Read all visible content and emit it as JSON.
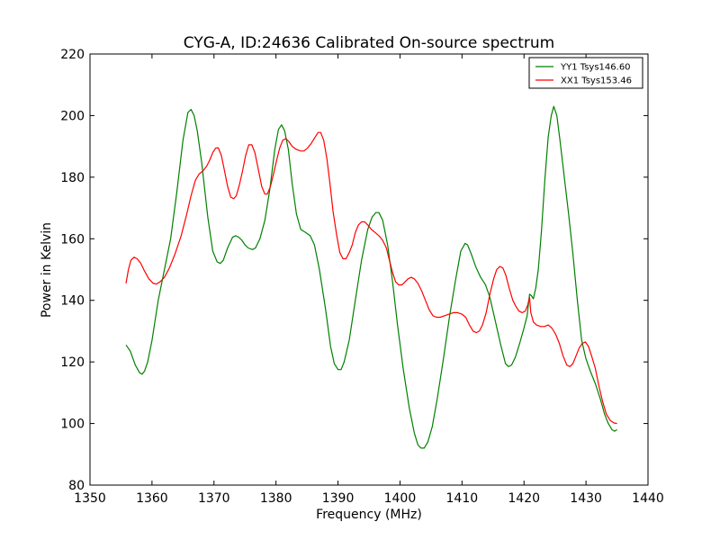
{
  "chart_data": {
    "type": "line",
    "title": "CYG-A, ID:24636 Calibrated On-source spectrum",
    "xlabel": "Frequency (MHz)",
    "ylabel": "Power in Kelvin",
    "xlim": [
      1350,
      1440
    ],
    "ylim": [
      80,
      220
    ],
    "xticks": [
      "1350",
      "1360",
      "1370",
      "1380",
      "1390",
      "1400",
      "1410",
      "1420",
      "1430",
      "1440"
    ],
    "yticks": [
      "80",
      "100",
      "120",
      "140",
      "160",
      "180",
      "200",
      "220"
    ],
    "grid": false,
    "legend_position": "top-right",
    "series": [
      {
        "name": "YY1 Tsys146.60",
        "color": "#008000",
        "points": [
          [
            1355.8,
            125.5
          ],
          [
            1356.5,
            123.5
          ],
          [
            1357.3,
            119
          ],
          [
            1358,
            116.5
          ],
          [
            1358.4,
            116
          ],
          [
            1358.8,
            117
          ],
          [
            1359.3,
            120
          ],
          [
            1360,
            127
          ],
          [
            1361,
            140
          ],
          [
            1362,
            150
          ],
          [
            1363,
            160
          ],
          [
            1364,
            175
          ],
          [
            1365,
            192
          ],
          [
            1365.8,
            201
          ],
          [
            1366.3,
            202
          ],
          [
            1366.8,
            200
          ],
          [
            1367.3,
            195
          ],
          [
            1368,
            185
          ],
          [
            1369,
            167
          ],
          [
            1369.8,
            156
          ],
          [
            1370.5,
            152.5
          ],
          [
            1371,
            152
          ],
          [
            1371.5,
            153
          ],
          [
            1372.2,
            157
          ],
          [
            1373,
            160.5
          ],
          [
            1373.5,
            161
          ],
          [
            1374,
            160.5
          ],
          [
            1374.5,
            159.5
          ],
          [
            1375,
            158
          ],
          [
            1375.5,
            157
          ],
          [
            1376.2,
            156.5
          ],
          [
            1376.7,
            157
          ],
          [
            1377.4,
            160
          ],
          [
            1378.2,
            166
          ],
          [
            1379,
            176
          ],
          [
            1379.8,
            189
          ],
          [
            1380.4,
            195.5
          ],
          [
            1380.9,
            197
          ],
          [
            1381.4,
            195
          ],
          [
            1382,
            189
          ],
          [
            1382.6,
            178
          ],
          [
            1383.3,
            168
          ],
          [
            1384,
            163
          ],
          [
            1384.8,
            162
          ],
          [
            1385.5,
            161
          ],
          [
            1386.2,
            158
          ],
          [
            1387,
            150
          ],
          [
            1388,
            137
          ],
          [
            1388.8,
            125
          ],
          [
            1389.4,
            119.5
          ],
          [
            1390,
            117.5
          ],
          [
            1390.5,
            117.5
          ],
          [
            1391,
            120
          ],
          [
            1391.8,
            127
          ],
          [
            1392.8,
            140
          ],
          [
            1393.8,
            153
          ],
          [
            1394.8,
            163
          ],
          [
            1395.5,
            167
          ],
          [
            1396.1,
            168.5
          ],
          [
            1396.6,
            168.5
          ],
          [
            1397.2,
            166
          ],
          [
            1398,
            158
          ],
          [
            1398.8,
            146
          ],
          [
            1399.6,
            132
          ],
          [
            1400.5,
            118
          ],
          [
            1401.5,
            105
          ],
          [
            1402.3,
            97
          ],
          [
            1402.9,
            93
          ],
          [
            1403.4,
            92
          ],
          [
            1403.9,
            92
          ],
          [
            1404.5,
            94
          ],
          [
            1405.2,
            99
          ],
          [
            1406,
            108
          ],
          [
            1407,
            121
          ],
          [
            1408,
            135
          ],
          [
            1409,
            147
          ],
          [
            1409.8,
            156
          ],
          [
            1410.5,
            158.5
          ],
          [
            1410.9,
            158
          ],
          [
            1411.5,
            155
          ],
          [
            1412.2,
            151
          ],
          [
            1413,
            147.5
          ],
          [
            1413.8,
            145
          ],
          [
            1414.5,
            141
          ],
          [
            1415.3,
            134
          ],
          [
            1416.2,
            126
          ],
          [
            1417,
            119.5
          ],
          [
            1417.5,
            118.5
          ],
          [
            1418,
            119
          ],
          [
            1418.6,
            121.5
          ],
          [
            1419.3,
            126
          ],
          [
            1420,
            131
          ],
          [
            1420.5,
            135
          ],
          [
            1420.9,
            142
          ],
          [
            1421.2,
            141.5
          ],
          [
            1421.5,
            140.5
          ],
          [
            1421.9,
            144
          ],
          [
            1422.3,
            150
          ],
          [
            1422.8,
            162
          ],
          [
            1423.4,
            180
          ],
          [
            1423.9,
            193
          ],
          [
            1424.4,
            200
          ],
          [
            1424.8,
            203
          ],
          [
            1425.3,
            200
          ],
          [
            1425.8,
            192
          ],
          [
            1426.5,
            180
          ],
          [
            1427.2,
            168
          ],
          [
            1427.9,
            155
          ],
          [
            1428.6,
            140
          ],
          [
            1429.3,
            127
          ],
          [
            1430,
            121
          ],
          [
            1430.7,
            117
          ],
          [
            1431.5,
            113
          ],
          [
            1432.3,
            108
          ],
          [
            1433,
            103
          ],
          [
            1433.6,
            100
          ],
          [
            1434.2,
            98
          ],
          [
            1434.6,
            97.5
          ],
          [
            1435,
            98
          ]
        ]
      },
      {
        "name": "XX1 Tsys153.46",
        "color": "#ff0000",
        "points": [
          [
            1355.8,
            145.5
          ],
          [
            1356.2,
            150
          ],
          [
            1356.6,
            153
          ],
          [
            1357.1,
            154
          ],
          [
            1357.6,
            153.5
          ],
          [
            1358.2,
            152
          ],
          [
            1358.8,
            149.5
          ],
          [
            1359.5,
            147
          ],
          [
            1360.2,
            145.5
          ],
          [
            1360.7,
            145.3
          ],
          [
            1361.3,
            146
          ],
          [
            1362,
            147.5
          ],
          [
            1362.8,
            150.5
          ],
          [
            1363.7,
            155
          ],
          [
            1364.7,
            161
          ],
          [
            1365.6,
            168
          ],
          [
            1366.3,
            174
          ],
          [
            1367,
            179
          ],
          [
            1367.6,
            181
          ],
          [
            1368.2,
            182
          ],
          [
            1368.8,
            183.5
          ],
          [
            1369.3,
            185.5
          ],
          [
            1369.8,
            188
          ],
          [
            1370.3,
            189.5
          ],
          [
            1370.7,
            189.5
          ],
          [
            1371.2,
            187
          ],
          [
            1371.7,
            182
          ],
          [
            1372.2,
            177
          ],
          [
            1372.7,
            173.5
          ],
          [
            1373.2,
            173
          ],
          [
            1373.6,
            174
          ],
          [
            1374.1,
            177.5
          ],
          [
            1374.6,
            182
          ],
          [
            1375.1,
            187
          ],
          [
            1375.6,
            190.5
          ],
          [
            1376.1,
            190.5
          ],
          [
            1376.6,
            188
          ],
          [
            1377.1,
            183
          ],
          [
            1377.7,
            177
          ],
          [
            1378.2,
            174.5
          ],
          [
            1378.6,
            174.5
          ],
          [
            1379.1,
            177
          ],
          [
            1379.6,
            181
          ],
          [
            1380.1,
            185.5
          ],
          [
            1380.6,
            189.5
          ],
          [
            1381.1,
            192
          ],
          [
            1381.6,
            192.5
          ],
          [
            1382.1,
            191.5
          ],
          [
            1382.6,
            190
          ],
          [
            1383.3,
            189
          ],
          [
            1384,
            188.5
          ],
          [
            1384.5,
            188.5
          ],
          [
            1385.1,
            189.5
          ],
          [
            1385.7,
            191
          ],
          [
            1386.3,
            193
          ],
          [
            1386.8,
            194.5
          ],
          [
            1387.2,
            194.5
          ],
          [
            1387.7,
            192
          ],
          [
            1388.2,
            186
          ],
          [
            1388.7,
            178
          ],
          [
            1389.2,
            169
          ],
          [
            1389.8,
            161
          ],
          [
            1390.3,
            155.5
          ],
          [
            1390.8,
            153.5
          ],
          [
            1391.3,
            153.5
          ],
          [
            1391.8,
            155.5
          ],
          [
            1392.3,
            158
          ],
          [
            1392.8,
            162
          ],
          [
            1393.3,
            164.5
          ],
          [
            1393.8,
            165.5
          ],
          [
            1394.3,
            165.5
          ],
          [
            1394.8,
            164.5
          ],
          [
            1395.4,
            163
          ],
          [
            1396,
            162
          ],
          [
            1396.6,
            161
          ],
          [
            1397.2,
            159.5
          ],
          [
            1397.8,
            157
          ],
          [
            1398.3,
            153
          ],
          [
            1398.8,
            149
          ],
          [
            1399.3,
            146
          ],
          [
            1399.8,
            145
          ],
          [
            1400.3,
            145
          ],
          [
            1400.8,
            146
          ],
          [
            1401.3,
            147
          ],
          [
            1401.8,
            147.5
          ],
          [
            1402.3,
            147
          ],
          [
            1402.9,
            145.5
          ],
          [
            1403.5,
            143
          ],
          [
            1404.1,
            140
          ],
          [
            1404.7,
            137
          ],
          [
            1405.3,
            135
          ],
          [
            1405.9,
            134.5
          ],
          [
            1406.5,
            134.5
          ],
          [
            1407.2,
            135
          ],
          [
            1407.9,
            135.5
          ],
          [
            1408.6,
            136
          ],
          [
            1409.3,
            136
          ],
          [
            1410,
            135.5
          ],
          [
            1410.6,
            134.5
          ],
          [
            1411.2,
            132
          ],
          [
            1411.8,
            130
          ],
          [
            1412.3,
            129.5
          ],
          [
            1412.8,
            130
          ],
          [
            1413.3,
            132
          ],
          [
            1413.9,
            136
          ],
          [
            1414.5,
            142
          ],
          [
            1415.1,
            147
          ],
          [
            1415.6,
            150
          ],
          [
            1416.1,
            151
          ],
          [
            1416.6,
            150.5
          ],
          [
            1417.1,
            148
          ],
          [
            1417.6,
            144
          ],
          [
            1418.2,
            140
          ],
          [
            1418.7,
            138
          ],
          [
            1419.2,
            136.5
          ],
          [
            1419.7,
            136
          ],
          [
            1420.2,
            136.5
          ],
          [
            1420.6,
            138.5
          ],
          [
            1420.9,
            141
          ],
          [
            1421.1,
            136
          ],
          [
            1421.5,
            133
          ],
          [
            1422,
            132
          ],
          [
            1422.7,
            131.5
          ],
          [
            1423.3,
            131.5
          ],
          [
            1423.9,
            132
          ],
          [
            1424.5,
            131
          ],
          [
            1425.1,
            129
          ],
          [
            1425.7,
            126
          ],
          [
            1426.3,
            122
          ],
          [
            1426.9,
            119
          ],
          [
            1427.4,
            118.5
          ],
          [
            1427.9,
            119.5
          ],
          [
            1428.4,
            122
          ],
          [
            1428.9,
            124.5
          ],
          [
            1429.4,
            126
          ],
          [
            1429.9,
            126.5
          ],
          [
            1430.4,
            125
          ],
          [
            1430.9,
            122
          ],
          [
            1431.5,
            118
          ],
          [
            1432.1,
            112
          ],
          [
            1432.7,
            107
          ],
          [
            1433.3,
            103
          ],
          [
            1433.9,
            101
          ],
          [
            1434.5,
            100.2
          ],
          [
            1435,
            100
          ]
        ]
      }
    ]
  }
}
